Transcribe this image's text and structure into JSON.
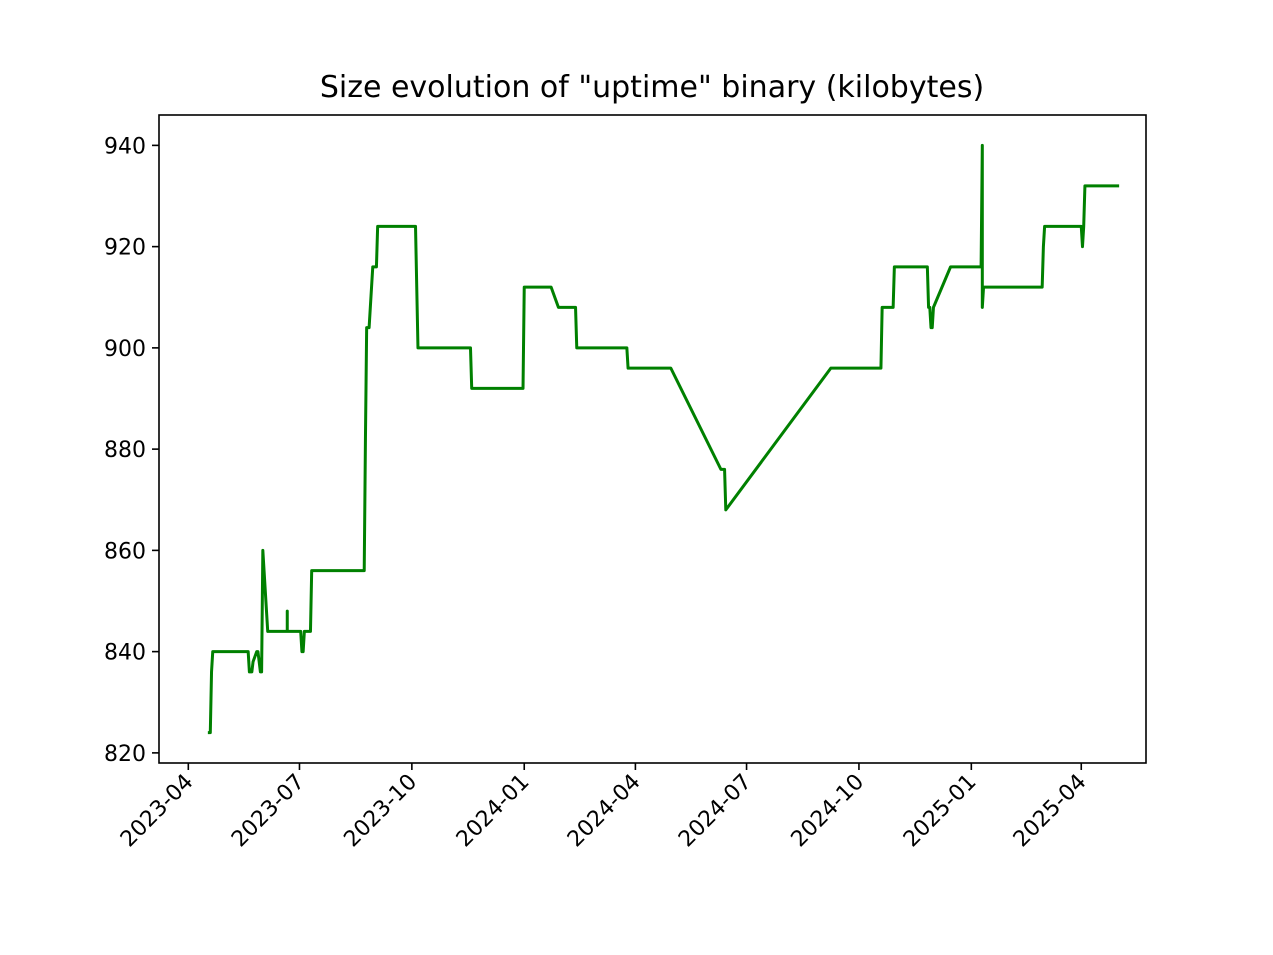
{
  "chart_data": {
    "type": "line",
    "title": "Size evolution of \"uptime\" binary (kilobytes)",
    "xlabel": "",
    "ylabel": "",
    "grid": false,
    "x_axis": {
      "type": "date",
      "range": [
        "2023-03-08",
        "2025-05-24"
      ],
      "ticks": [
        "2023-04",
        "2023-07",
        "2023-10",
        "2024-01",
        "2024-04",
        "2024-07",
        "2024-10",
        "2025-01",
        "2025-04"
      ],
      "tick_rotation_deg": 45
    },
    "y_axis": {
      "range": [
        818,
        946
      ],
      "ticks": [
        820,
        840,
        860,
        880,
        900,
        920,
        940
      ]
    },
    "series": [
      {
        "color": "#008000",
        "x": [
          "2023-04-17",
          "2023-04-19",
          "2023-04-20",
          "2023-04-21",
          "2023-05-05",
          "2023-05-20",
          "2023-05-21",
          "2023-05-23",
          "2023-05-24",
          "2023-05-27",
          "2023-05-28",
          "2023-05-30",
          "2023-05-31",
          "2023-06-01",
          "2023-06-02",
          "2023-06-05",
          "2023-06-06",
          "2023-06-07",
          "2023-06-21",
          "2023-06-21",
          "2023-06-21",
          "2023-07-02",
          "2023-07-03",
          "2023-07-04",
          "2023-07-05",
          "2023-07-10",
          "2023-07-11",
          "2023-08-23",
          "2023-08-24",
          "2023-08-25",
          "2023-08-27",
          "2023-08-30",
          "2023-08-31",
          "2023-09-02",
          "2023-09-03",
          "2023-09-04",
          "2023-09-05",
          "2023-10-04",
          "2023-10-05",
          "2023-10-06",
          "2023-11-18",
          "2023-11-19",
          "2023-12-31",
          "2024-01-01",
          "2024-01-23",
          "2024-01-29",
          "2024-02-12",
          "2024-02-13",
          "2024-03-25",
          "2024-03-26",
          "2024-04-30",
          "2024-06-10",
          "2024-06-13",
          "2024-06-14",
          "2024-09-08",
          "2024-10-19",
          "2024-10-20",
          "2024-10-21",
          "2024-10-29",
          "2024-10-30",
          "2024-11-26",
          "2024-11-27",
          "2024-11-28",
          "2024-11-29",
          "2024-11-30",
          "2024-12-01",
          "2024-12-15",
          "2025-01-09",
          "2025-01-10",
          "2025-01-10",
          "2025-01-11",
          "2025-01-12",
          "2025-02-28",
          "2025-03-01",
          "2025-03-02",
          "2025-04-01",
          "2025-04-02",
          "2025-04-03",
          "2025-04-04",
          "2025-04-05",
          "2025-05-02"
        ],
        "y": [
          824,
          824,
          836,
          840,
          840,
          840,
          836,
          836,
          838,
          840,
          840,
          836,
          836,
          860,
          856,
          844,
          844,
          844,
          844,
          848,
          844,
          844,
          840,
          840,
          844,
          844,
          856,
          856,
          882,
          904,
          904,
          916,
          916,
          916,
          924,
          924,
          924,
          924,
          912,
          900,
          900,
          892,
          892,
          912,
          912,
          908,
          908,
          900,
          900,
          896,
          896,
          876,
          876,
          868,
          896,
          896,
          908,
          908,
          908,
          916,
          916,
          908,
          908,
          904,
          904,
          908,
          916,
          916,
          940,
          908,
          912,
          912,
          912,
          920,
          924,
          924,
          920,
          924,
          932,
          932,
          932
        ]
      }
    ]
  }
}
